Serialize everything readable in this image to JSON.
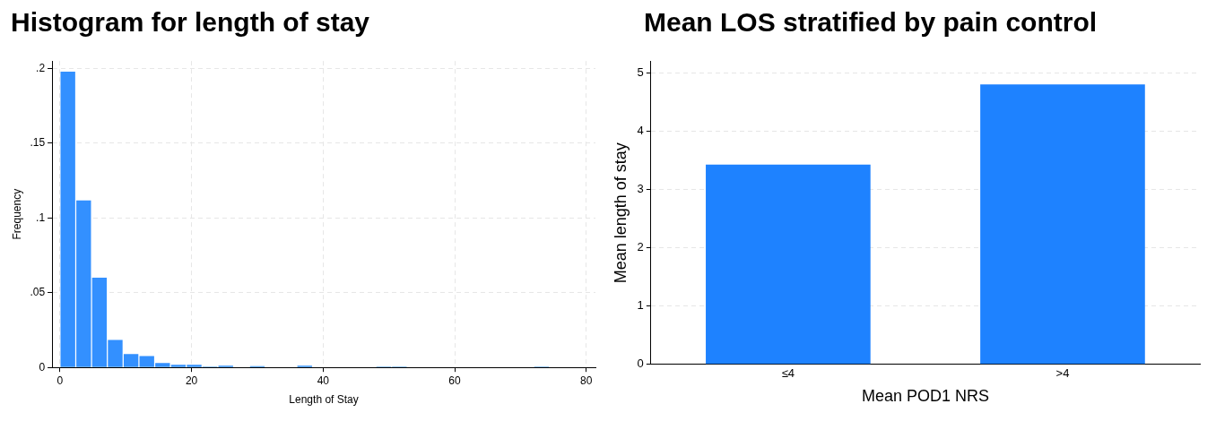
{
  "chart_data": [
    {
      "type": "histogram",
      "title": "Histogram for length of stay",
      "xlabel": "Length of Stay",
      "ylabel": "Frequency",
      "color": "#3390ff",
      "bins": [
        0,
        2.4,
        4.8,
        7.2,
        9.6,
        12,
        14.4,
        16.8,
        19.2,
        21.6,
        24,
        26.4,
        28.8,
        31.2,
        33.6,
        36,
        38.4,
        40.8,
        43.2,
        45.6,
        48,
        50.4,
        52.8,
        55.2,
        57.6,
        60,
        62.4,
        64.8,
        67.2,
        69.6,
        72,
        74.4
      ],
      "values": [
        0.198,
        0.1117,
        0.06,
        0.0184,
        0.009,
        0.0076,
        0.003,
        0.0018,
        0.0018,
        0.0006,
        0.0012,
        0,
        0.0008,
        0,
        0,
        0.0012,
        0,
        0,
        0,
        0,
        0.0006,
        0.0006,
        0,
        0,
        0,
        0,
        0,
        0,
        0,
        0,
        0.0006
      ],
      "xlim": [
        -1.2,
        81.4
      ],
      "xticks": [
        0,
        20,
        40,
        60,
        80
      ],
      "ylim": [
        0,
        0.205
      ],
      "yticks": [
        {
          "value": 0,
          "label": "0"
        },
        {
          "value": 0.05,
          "label": ".05"
        },
        {
          "value": 0.1,
          "label": ".1"
        },
        {
          "value": 0.15,
          "label": ".15"
        },
        {
          "value": 0.2,
          "label": ".2"
        }
      ],
      "grid": true
    },
    {
      "type": "bar",
      "title": "Mean LOS stratified by pain control",
      "xlabel": "Mean POD1 NRS",
      "ylabel": "Mean length of stay",
      "color": "#1e82ff",
      "categories": [
        "≤4",
        ">4"
      ],
      "values": [
        3.43,
        4.81
      ],
      "ylim": [
        0,
        5.2
      ],
      "yticks": [
        0,
        1,
        2,
        3,
        4,
        5
      ],
      "grid": "y"
    }
  ]
}
